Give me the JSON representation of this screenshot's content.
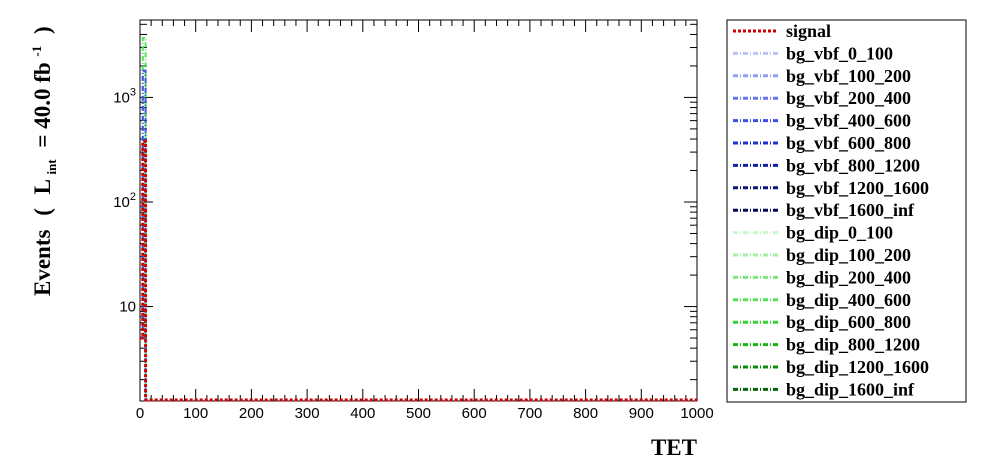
{
  "chart_data": {
    "type": "line",
    "title": "",
    "xlabel": "TET",
    "ylabel": "Events ( L_int = 40.0 fb^-1 )",
    "ylabel_parts": {
      "events": "Events",
      "open": "(",
      "L": "L",
      "int": "int",
      "eq": "= 40.0 fb",
      "exp": "-1",
      "close": ")"
    },
    "x_scale": "linear",
    "y_scale": "log",
    "xlim": [
      0,
      1000
    ],
    "ylim": [
      1.25,
      5500
    ],
    "x_ticks": [
      0,
      100,
      200,
      300,
      400,
      500,
      600,
      700,
      800,
      900,
      1000
    ],
    "x_tick_labels": [
      "0",
      "100",
      "200",
      "300",
      "400",
      "500",
      "600",
      "700",
      "800",
      "900",
      "1000"
    ],
    "y_ticks": [
      {
        "value": 10,
        "base": "10",
        "exp": ""
      },
      {
        "value": 100,
        "base": "10",
        "exp": "2"
      },
      {
        "value": 1000,
        "base": "10",
        "exp": "3"
      }
    ],
    "legend_position": "right, outside the plot",
    "series": [
      {
        "name": "signal",
        "color": "#cc0000",
        "x": [
          0,
          5,
          10,
          1000
        ],
        "y": [
          5,
          380,
          1.25,
          1.25
        ]
      },
      {
        "name": "bg_vbf_0_100",
        "color": "#b8c4f2"
      },
      {
        "name": "bg_vbf_100_200",
        "color": "#8f9ff2"
      },
      {
        "name": "bg_vbf_200_400",
        "color": "#6576f0"
      },
      {
        "name": "bg_vbf_400_600",
        "color": "#3d4ee8",
        "x": [
          0,
          5,
          10
        ],
        "y": [
          5,
          1800,
          1.25
        ]
      },
      {
        "name": "bg_vbf_600_800",
        "color": "#1f2fd0"
      },
      {
        "name": "bg_vbf_800_1200",
        "color": "#1020a6"
      },
      {
        "name": "bg_vbf_1200_1600",
        "color": "#0a1678"
      },
      {
        "name": "bg_vbf_1600_inf",
        "color": "#050c52"
      },
      {
        "name": "bg_dip_0_100",
        "color": "#ccf7cc"
      },
      {
        "name": "bg_dip_100_200",
        "color": "#a6f0a6"
      },
      {
        "name": "bg_dip_200_400",
        "color": "#7de87d"
      },
      {
        "name": "bg_dip_400_600",
        "color": "#55e055",
        "x": [
          0,
          5,
          10
        ],
        "y": [
          5,
          3700,
          1.25
        ]
      },
      {
        "name": "bg_dip_600_800",
        "color": "#2ed62e"
      },
      {
        "name": "bg_dip_800_1200",
        "color": "#14b814"
      },
      {
        "name": "bg_dip_1200_1600",
        "color": "#0a900a"
      },
      {
        "name": "bg_dip_1600_inf",
        "color": "#046604"
      }
    ]
  }
}
